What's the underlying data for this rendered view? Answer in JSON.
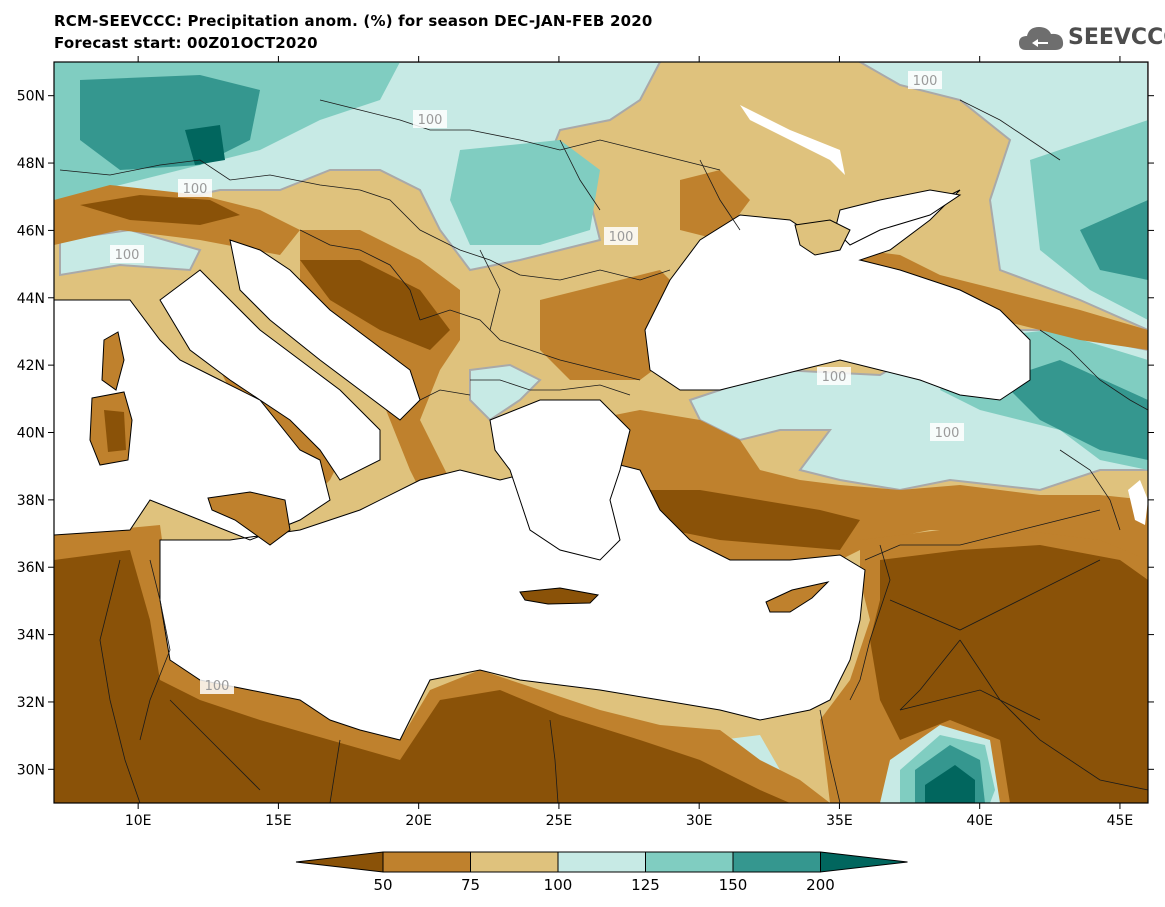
{
  "header": {
    "title_line1": "RCM-SEEVCCC: Precipitation anom. (%) for season DEC-JAN-FEB 2020",
    "title_line2": "Forecast start: 00Z01OCT2020"
  },
  "logo": {
    "text": "SEEVCCC",
    "icon": "cloud-icon"
  },
  "map": {
    "lon_range": [
      7,
      46
    ],
    "lat_range": [
      29,
      51
    ],
    "x_ticks": [
      "10E",
      "15E",
      "20E",
      "25E",
      "30E",
      "35E",
      "40E",
      "45E"
    ],
    "y_ticks": [
      "50N",
      "48N",
      "46N",
      "44N",
      "42N",
      "40N",
      "38N",
      "36N",
      "34N",
      "32N",
      "30N"
    ],
    "contour_labels": [
      "100",
      "100",
      "100",
      "100",
      "100",
      "100",
      "100",
      "100"
    ]
  },
  "colorbar": {
    "levels": [
      "50",
      "75",
      "100",
      "125",
      "150",
      "200"
    ],
    "colors": [
      "#8a5208",
      "#bf812d",
      "#dfc27d",
      "#c7eae5",
      "#80cdc1",
      "#35978f",
      "#01665e"
    ]
  }
}
